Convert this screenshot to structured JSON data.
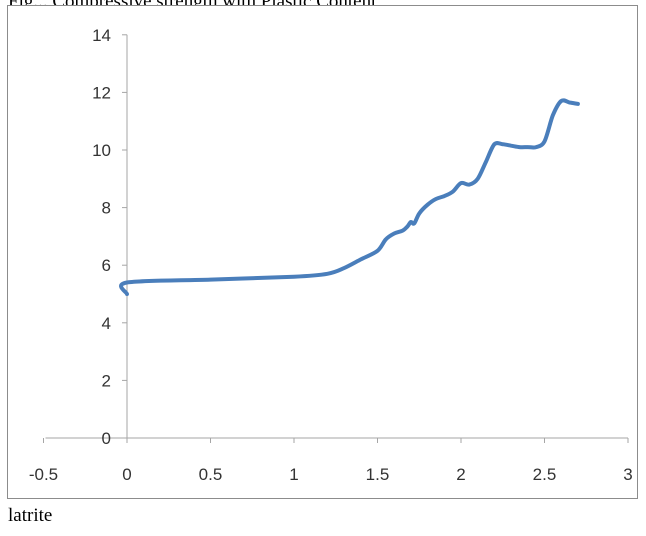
{
  "header_text": "Fig... Compressive strength with Plastic Content",
  "caption": "latrite",
  "colors": {
    "series": "#4a7ebb",
    "axis": "#a6a6a6",
    "text": "#333333",
    "frame": "#8c8c8c"
  },
  "chart_data": {
    "type": "line",
    "title": "",
    "xlabel": "",
    "ylabel": "",
    "xlim": [
      -0.5,
      3
    ],
    "ylim": [
      0,
      14
    ],
    "x_ticks": [
      -0.5,
      0,
      0.5,
      1,
      1.5,
      2,
      2.5,
      3
    ],
    "x_tick_labels": [
      "-0.5",
      "0",
      "0.5",
      "1",
      "1.5",
      "2",
      "2.5",
      "3"
    ],
    "y_ticks": [
      0,
      2,
      4,
      6,
      8,
      10,
      12,
      14
    ],
    "y_tick_labels": [
      "0",
      "2",
      "4",
      "6",
      "8",
      "10",
      "12",
      "14"
    ],
    "grid": false,
    "legend": "none",
    "series": [
      {
        "x": [
          0,
          0,
          0.5,
          1,
          1.2,
          1.3,
          1.4,
          1.5,
          1.55,
          1.6,
          1.65,
          1.68,
          1.7,
          1.72,
          1.75,
          1.8,
          1.85,
          1.9,
          1.95,
          2.0,
          2.05,
          2.1,
          2.15,
          2.2,
          2.25,
          2.3,
          2.35,
          2.4,
          2.45,
          2.5,
          2.55,
          2.6,
          2.65,
          2.7
        ],
        "y": [
          5.0,
          5.4,
          5.5,
          5.6,
          5.7,
          5.9,
          6.2,
          6.5,
          6.9,
          7.1,
          7.2,
          7.35,
          7.5,
          7.45,
          7.8,
          8.1,
          8.3,
          8.4,
          8.55,
          8.85,
          8.8,
          9.0,
          9.6,
          10.2,
          10.2,
          10.15,
          10.1,
          10.1,
          10.1,
          10.3,
          11.2,
          11.7,
          11.65,
          11.6
        ]
      }
    ]
  }
}
